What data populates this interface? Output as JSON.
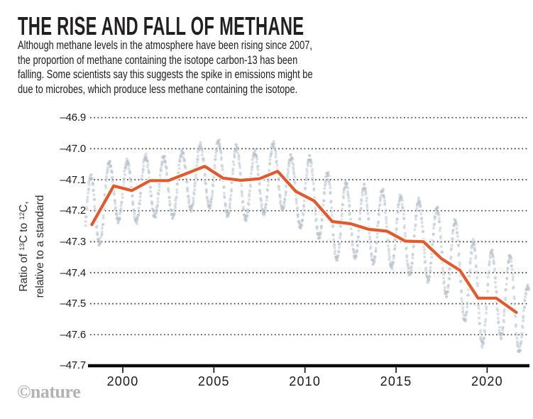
{
  "header": {
    "title": "THE RISE AND FALL OF METHANE",
    "description_lines": [
      "Although methane levels in the atmosphere have been rising since 2007,",
      "the proportion of methane containing the isotope carbon-13 has been",
      "falling. Some scientists say this suggests the spike in emissions might be",
      "due to microbes, which produce less methane containing the isotope."
    ]
  },
  "footer": {
    "logo_text": "©nature"
  },
  "colors": {
    "trend_line": "#e2592c",
    "trend_casing": "#ffffff",
    "scatter_dot": "#b6c1cc",
    "grid_dot": "#3a3a3a",
    "axis_line": "#0a0a0a",
    "title_text": "#231f20",
    "axis_text": "#1a1a1a",
    "logo_gray": "#b3b3b3"
  },
  "chart_data": {
    "type": "scatter+line",
    "title": "THE RISE AND FALL OF METHANE",
    "xlabel": "",
    "ylabel_lines": [
      [
        {
          "text": "Ratio of "
        },
        {
          "sup": "13"
        },
        {
          "text": "C to "
        },
        {
          "sup": "12"
        },
        {
          "text": "C,"
        }
      ],
      [
        {
          "text": "relative to a standard"
        }
      ]
    ],
    "xlim": [
      1997.85,
      2022.4
    ],
    "ylim": [
      -47.7,
      -46.9
    ],
    "grid": "dotted-horizontal",
    "legend": "none",
    "y_ticks": {
      "labels": [
        "–46.9",
        "–47.0",
        "–47.1",
        "–47.2",
        "–47.3",
        "–47.4",
        "–47.5",
        "–47.6",
        "–47.7"
      ],
      "values": [
        -46.9,
        -47.0,
        -47.1,
        -47.2,
        -47.3,
        -47.4,
        -47.5,
        -47.6,
        -47.7
      ]
    },
    "x_ticks": {
      "labels": [
        "2000",
        "2005",
        "2010",
        "2015",
        "2020"
      ],
      "values": [
        2000,
        2005,
        2010,
        2015,
        2020
      ]
    },
    "trend_series": {
      "name": "annual-mean-trend",
      "points": [
        {
          "year": 1998.3,
          "value": -47.245
        },
        {
          "year": 1999.5,
          "value": -47.12
        },
        {
          "year": 2000.5,
          "value": -47.135
        },
        {
          "year": 2001.5,
          "value": -47.103
        },
        {
          "year": 2002.5,
          "value": -47.103
        },
        {
          "year": 2003.5,
          "value": -47.08
        },
        {
          "year": 2004.5,
          "value": -47.057
        },
        {
          "year": 2005.5,
          "value": -47.095
        },
        {
          "year": 2006.5,
          "value": -47.102
        },
        {
          "year": 2007.5,
          "value": -47.097
        },
        {
          "year": 2008.5,
          "value": -47.073
        },
        {
          "year": 2009.5,
          "value": -47.138
        },
        {
          "year": 2010.5,
          "value": -47.168
        },
        {
          "year": 2011.5,
          "value": -47.235
        },
        {
          "year": 2012.5,
          "value": -47.242
        },
        {
          "year": 2013.5,
          "value": -47.26
        },
        {
          "year": 2014.5,
          "value": -47.266
        },
        {
          "year": 2015.5,
          "value": -47.298
        },
        {
          "year": 2016.5,
          "value": -47.3
        },
        {
          "year": 2017.5,
          "value": -47.355
        },
        {
          "year": 2018.5,
          "value": -47.392
        },
        {
          "year": 2019.5,
          "value": -47.482
        },
        {
          "year": 2020.5,
          "value": -47.482
        },
        {
          "year": 2021.6,
          "value": -47.528
        }
      ]
    },
    "scatter_series": {
      "name": "individual-measurements-seasonal-cycle",
      "peak_phase": 0.25,
      "t_start": 1997.95,
      "t_end": 2022.3,
      "sample_step": 0.016,
      "seasonal_envelope": [
        {
          "year": 1998,
          "peak": -47.09,
          "trough": -47.33
        },
        {
          "year": 1999,
          "peak": -47.03,
          "trough": -47.23
        },
        {
          "year": 2000,
          "peak": -47.045,
          "trough": -47.24
        },
        {
          "year": 2001,
          "peak": -47.02,
          "trough": -47.215
        },
        {
          "year": 2002,
          "peak": -47.03,
          "trough": -47.225
        },
        {
          "year": 2003,
          "peak": -47.005,
          "trough": -47.2
        },
        {
          "year": 2004,
          "peak": -46.985,
          "trough": -47.18
        },
        {
          "year": 2005,
          "peak": -46.975,
          "trough": -47.21
        },
        {
          "year": 2006,
          "peak": -47.0,
          "trough": -47.23
        },
        {
          "year": 2007,
          "peak": -47.015,
          "trough": -47.22
        },
        {
          "year": 2008,
          "peak": -46.975,
          "trough": -47.175
        },
        {
          "year": 2009,
          "peak": -47.045,
          "trough": -47.25
        },
        {
          "year": 2010,
          "peak": -47.025,
          "trough": -47.26
        },
        {
          "year": 2011,
          "peak": -47.1,
          "trough": -47.36
        },
        {
          "year": 2012,
          "peak": -47.115,
          "trough": -47.345
        },
        {
          "year": 2013,
          "peak": -47.125,
          "trough": -47.365
        },
        {
          "year": 2014,
          "peak": -47.14,
          "trough": -47.375
        },
        {
          "year": 2015,
          "peak": -47.16,
          "trough": -47.4
        },
        {
          "year": 2016,
          "peak": -47.17,
          "trough": -47.415
        },
        {
          "year": 2017,
          "peak": -47.2,
          "trough": -47.455
        },
        {
          "year": 2018,
          "peak": -47.245,
          "trough": -47.52
        },
        {
          "year": 2019,
          "peak": -47.32,
          "trough": -47.645
        },
        {
          "year": 2020,
          "peak": -47.335,
          "trough": -47.59
        },
        {
          "year": 2021,
          "peak": -47.35,
          "trough": -47.65
        },
        {
          "year": 2022,
          "peak": -47.48,
          "trough": -47.66
        }
      ]
    }
  }
}
